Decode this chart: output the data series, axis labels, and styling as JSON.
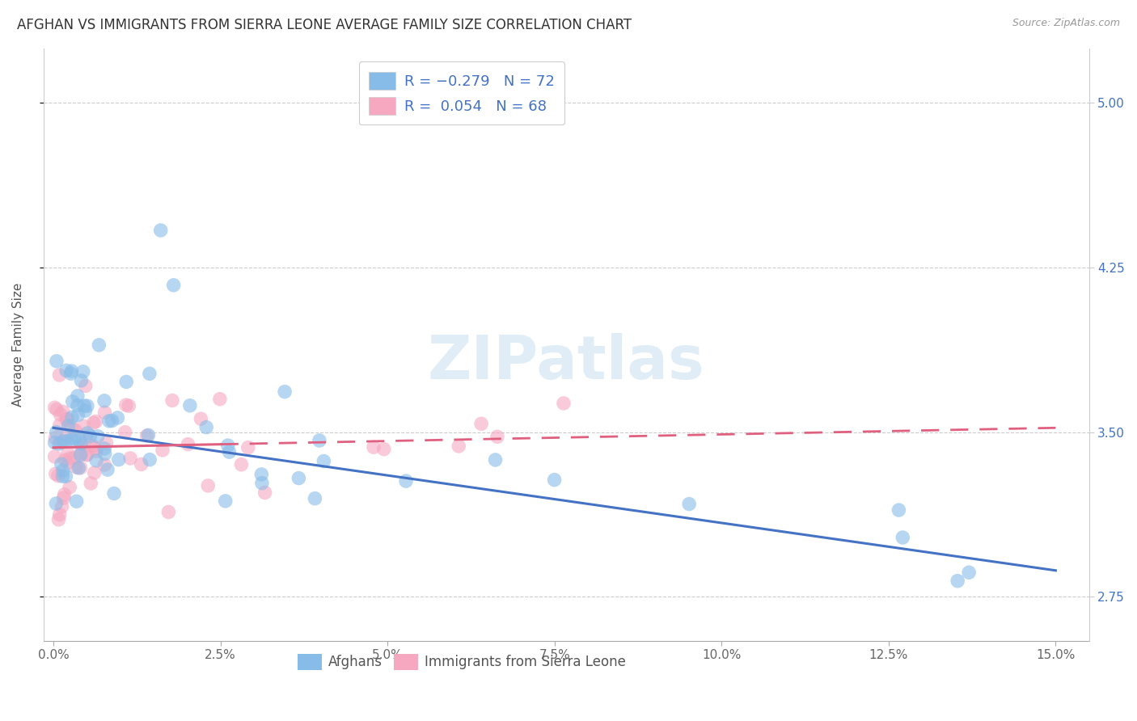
{
  "title": "AFGHAN VS IMMIGRANTS FROM SIERRA LEONE AVERAGE FAMILY SIZE CORRELATION CHART",
  "source": "Source: ZipAtlas.com",
  "ylabel": "Average Family Size",
  "ylim": [
    2.55,
    5.25
  ],
  "xlim": [
    -0.15,
    15.5
  ],
  "yticks": [
    2.75,
    3.5,
    4.25,
    5.0
  ],
  "xtick_vals": [
    0.0,
    2.5,
    5.0,
    7.5,
    10.0,
    12.5,
    15.0
  ],
  "xtick_labels": [
    "0.0%",
    "2.5%",
    "5.0%",
    "7.5%",
    "10.0%",
    "12.5%",
    "15.0%"
  ],
  "legend_labels": [
    "Afghans",
    "Immigrants from Sierra Leone"
  ],
  "blue_R": -0.279,
  "blue_N": 72,
  "pink_R": 0.054,
  "pink_N": 68,
  "blue_color": "#88bce8",
  "pink_color": "#f5a8c0",
  "blue_line_color": "#4472c4",
  "pink_line_color": "#e06080",
  "watermark": "ZIPatlas",
  "background_color": "#ffffff",
  "title_fontsize": 12,
  "axis_label_fontsize": 11,
  "tick_fontsize": 11,
  "blue_line_start_y": 3.52,
  "blue_line_end_y": 2.87,
  "pink_line_start_y": 3.43,
  "pink_line_end_y": 3.52,
  "pink_solid_end_x": 2.5,
  "scatter_alpha": 0.6,
  "scatter_size": 160
}
